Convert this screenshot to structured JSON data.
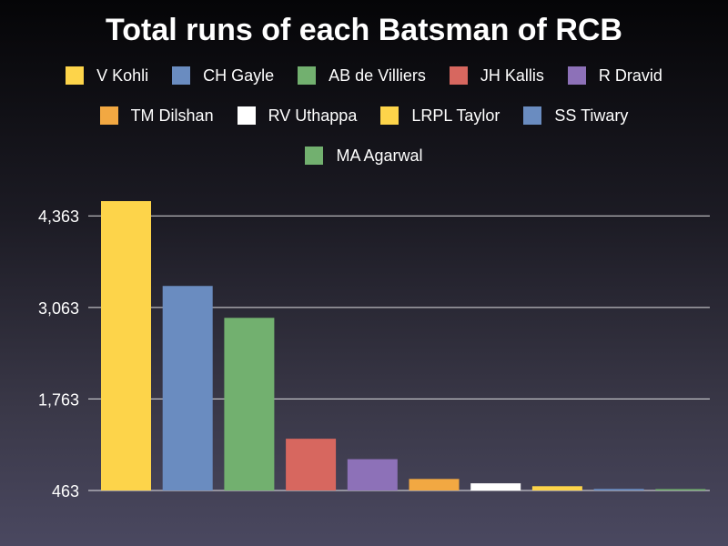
{
  "chart_data": {
    "type": "bar",
    "title": "Total runs of each Batsman of RCB",
    "xlabel": "",
    "ylabel": "",
    "categories": [
      "V Kohli",
      "CH Gayle",
      "AB de Villiers",
      "JH Kallis",
      "R Dravid",
      "TM Dilshan",
      "RV Uthappa",
      "LRPL Taylor",
      "SS Tiwary",
      "MA Agarwal"
    ],
    "values": [
      4573,
      3368,
      2915,
      1198,
      908,
      627,
      565,
      524,
      486,
      483
    ],
    "colors": [
      "#fdd44a",
      "#6a8cc0",
      "#72b06f",
      "#d7675f",
      "#8d71b8",
      "#f2a842",
      "#ffffff",
      "#fdd44a",
      "#6a8cc0",
      "#72b06f"
    ],
    "y_ticks": [
      "463",
      "1,763",
      "3,063",
      "4,363"
    ],
    "y_tick_values": [
      463,
      1763,
      3063,
      4363
    ],
    "ylim": [
      463,
      4573
    ],
    "grid": true,
    "legend_position": "top"
  }
}
